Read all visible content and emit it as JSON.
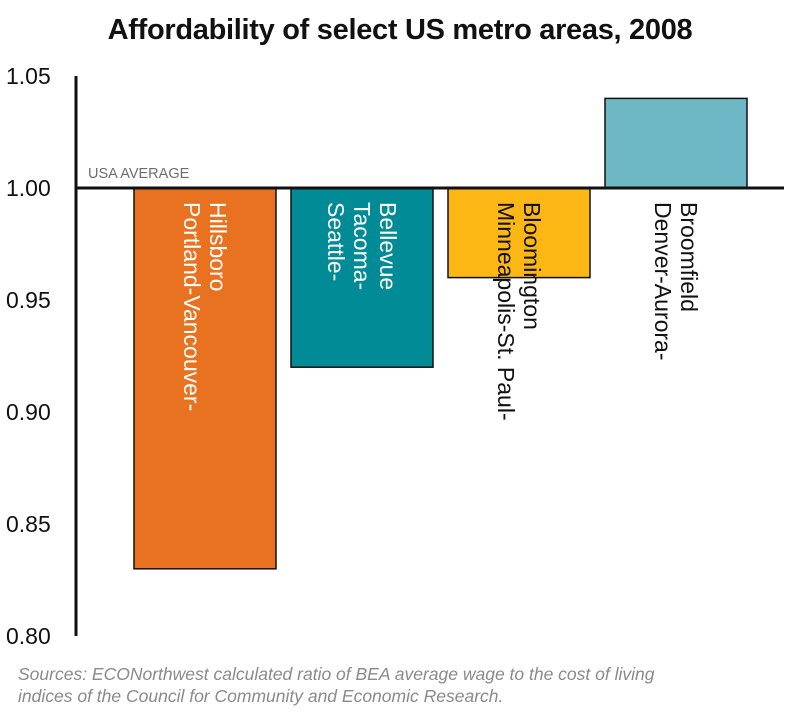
{
  "chart_data": {
    "type": "bar",
    "title": "Affordability of select US metro areas, 2008",
    "baseline": 1.0,
    "baseline_label": "USA AVERAGE",
    "ylim": [
      0.8,
      1.05
    ],
    "yticks": [
      1.05,
      1.0,
      0.95,
      0.9,
      0.85,
      0.8
    ],
    "ytick_labels": [
      "1.05",
      "1.00",
      "0.95",
      "0.90",
      "0.85",
      "0.80"
    ],
    "grid": false,
    "categories": [
      {
        "lines": [
          "Portland-Vancouver-",
          "Hillsboro"
        ]
      },
      {
        "lines": [
          "Seattle-",
          "Tacoma-",
          "Bellevue"
        ]
      },
      {
        "lines": [
          "Minneapolis-St. Paul-",
          "Bloomington"
        ]
      },
      {
        "lines": [
          "Denver-Aurora-",
          "Broomfield"
        ]
      }
    ],
    "values": [
      0.83,
      0.92,
      0.96,
      1.04
    ],
    "colors": [
      "#e8721f",
      "#008b96",
      "#fdb714",
      "#6db8c4"
    ],
    "sources": [
      "Sources: ECONorthwest calculated ratio of BEA average wage to the cost of living",
      "indices of the Council for Community and Economic Research."
    ]
  }
}
